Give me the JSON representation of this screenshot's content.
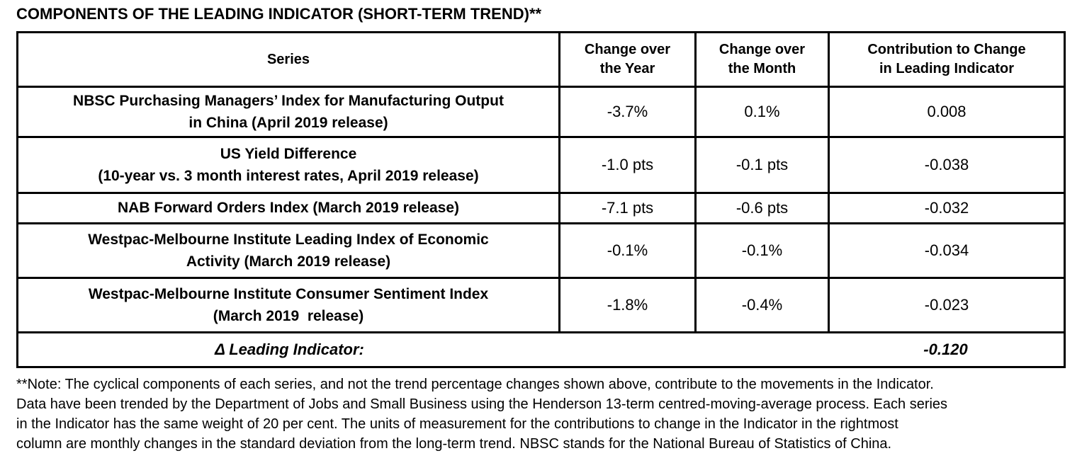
{
  "title": "COMPONENTS OF THE LEADING INDICATOR (SHORT-TERM TREND)**",
  "table": {
    "headers": {
      "series": "Series",
      "change_over_year": "Change over\nthe Year",
      "change_over_month": "Change over\nthe Month",
      "contribution": "Contribution to Change\nin Leading Indicator"
    },
    "rows": [
      {
        "series": "NBSC Purchasing Managers’ Index for Manufacturing Output\nin China (April 2019 release)",
        "change_over_year": "-3.7%",
        "change_over_month": "0.1%",
        "contribution": "0.008"
      },
      {
        "series": "US Yield Difference\n(10-year vs. 3 month interest rates, April 2019 release)",
        "change_over_year": "-1.0 pts",
        "change_over_month": "-0.1 pts",
        "contribution": "-0.038"
      },
      {
        "series": "NAB Forward Orders Index (March 2019 release)",
        "change_over_year": "-7.1 pts",
        "change_over_month": "-0.6 pts",
        "contribution": "-0.032"
      },
      {
        "series": "Westpac-Melbourne Institute Leading Index of Economic\nActivity (March 2019 release)",
        "change_over_year": "-0.1%",
        "change_over_month": "-0.1%",
        "contribution": "-0.034"
      },
      {
        "series": "Westpac-Melbourne Institute Consumer Sentiment Index\n(March 2019  release)",
        "change_over_year": "-1.8%",
        "change_over_month": "-0.4%",
        "contribution": "-0.023"
      }
    ],
    "total": {
      "label": "Δ Leading Indicator:",
      "value": "-0.120"
    }
  },
  "footnote": "**Note: The cyclical components of each series, and not the trend percentage changes shown above, contribute to the movements in the Indicator.\nData have been trended by the Department of Jobs and Small Business using the Henderson 13-term centred-moving-average process. Each series\nin the Indicator has the same weight of 20 per cent. The units of measurement for the contributions to change in the Indicator in the rightmost\ncolumn are monthly changes in the standard deviation from the long-term trend. NBSC stands for the National Bureau of Statistics of China.",
  "colors": {
    "text": "#000000",
    "border": "#000000",
    "background": "#ffffff"
  }
}
